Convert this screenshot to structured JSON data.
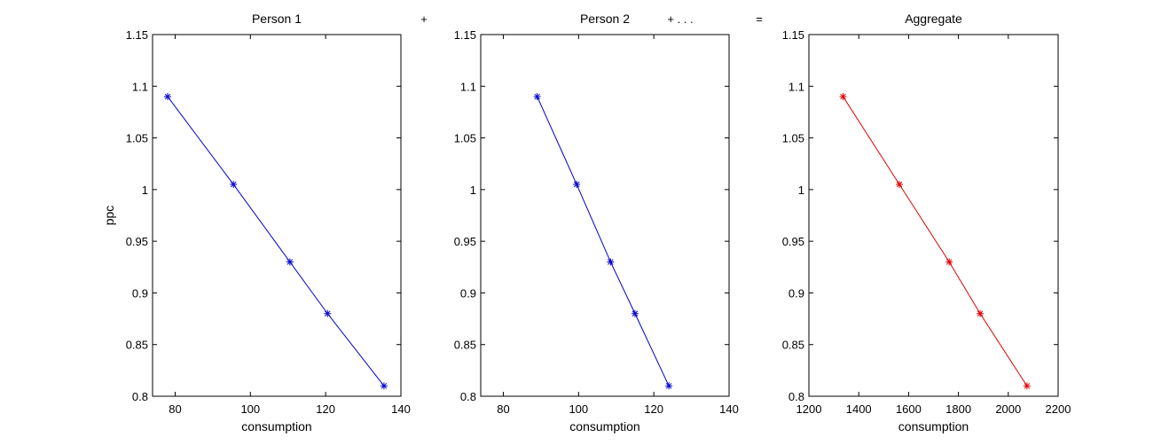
{
  "figure": {
    "operators": [
      "+",
      "+ . . .",
      "="
    ]
  },
  "chart_data": [
    {
      "type": "line",
      "title": "Person 1",
      "xlabel": "consumption",
      "ylabel": "ppc",
      "xlim": [
        74,
        140
      ],
      "ylim": [
        0.8,
        1.15
      ],
      "xticks": [
        80,
        100,
        120,
        140
      ],
      "yticks": [
        0.8,
        0.85,
        0.9,
        0.95,
        1,
        1.05,
        1.1,
        1.15
      ],
      "color": "#0000cc",
      "marker": "asterisk",
      "grid": false,
      "x": [
        78,
        95.5,
        110.5,
        120.5,
        135.5
      ],
      "y": [
        1.09,
        1.005,
        0.93,
        0.88,
        0.81
      ]
    },
    {
      "type": "line",
      "title": "Person 2",
      "xlabel": "consumption",
      "ylabel": "",
      "xlim": [
        74,
        140
      ],
      "ylim": [
        0.8,
        1.15
      ],
      "xticks": [
        80,
        100,
        120,
        140
      ],
      "yticks": [
        0.8,
        0.85,
        0.9,
        0.95,
        1,
        1.05,
        1.1,
        1.15
      ],
      "color": "#0000cc",
      "marker": "asterisk",
      "grid": false,
      "x": [
        89,
        99.5,
        108.5,
        115,
        124
      ],
      "y": [
        1.09,
        1.005,
        0.93,
        0.88,
        0.81
      ]
    },
    {
      "type": "line",
      "title": "Aggregate",
      "xlabel": "consumption",
      "ylabel": "",
      "xlim": [
        1200,
        2200
      ],
      "ylim": [
        0.8,
        1.15
      ],
      "xticks": [
        1200,
        1400,
        1600,
        1800,
        2000,
        2200
      ],
      "yticks": [
        0.8,
        0.85,
        0.9,
        0.95,
        1,
        1.05,
        1.1,
        1.15
      ],
      "color": "#dd0000",
      "marker": "asterisk",
      "grid": false,
      "x": [
        1337,
        1563,
        1763,
        1887,
        2075
      ],
      "y": [
        1.09,
        1.005,
        0.93,
        0.88,
        0.81
      ]
    }
  ]
}
